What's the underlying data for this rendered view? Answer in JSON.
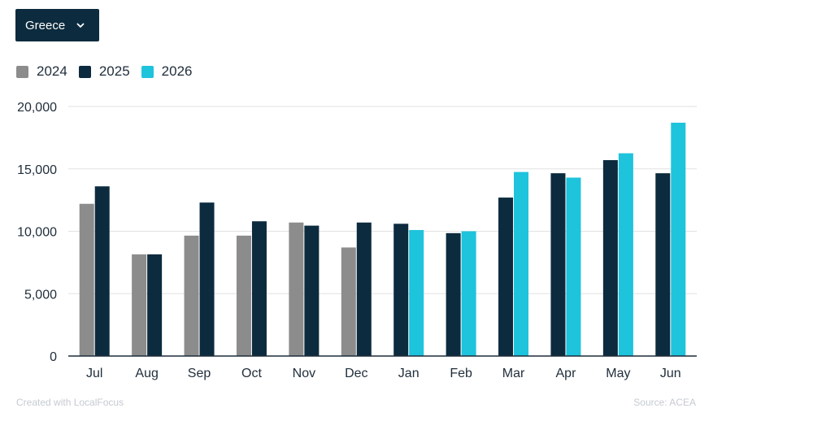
{
  "filter": {
    "selected": "Greece",
    "icon": "chevron-down-icon"
  },
  "colors": {
    "2024": "#8c8c8c",
    "2025": "#0d2b3e",
    "2026": "#1ec3dc",
    "grid": "#e2e2e2",
    "axis": "#1f2d3a"
  },
  "chart_data": {
    "type": "bar",
    "categories": [
      "Jul",
      "Aug",
      "Sep",
      "Oct",
      "Nov",
      "Dec",
      "Jan",
      "Feb",
      "Mar",
      "Apr",
      "May",
      "Jun"
    ],
    "series": [
      {
        "name": "2024",
        "values": [
          12200,
          8150,
          9650,
          9650,
          10700,
          8700,
          null,
          null,
          null,
          null,
          null,
          null
        ]
      },
      {
        "name": "2025",
        "values": [
          13600,
          8150,
          12300,
          10800,
          10450,
          10700,
          10600,
          9850,
          12700,
          14650,
          15700,
          14650
        ]
      },
      {
        "name": "2026",
        "values": [
          null,
          null,
          null,
          null,
          null,
          null,
          10100,
          10000,
          14750,
          14300,
          16250,
          18700
        ]
      }
    ],
    "yticks": [
      "0",
      "5,000",
      "10,000",
      "15,000",
      "20,000"
    ],
    "ylim": [
      0,
      20000
    ],
    "grid": true,
    "legend": "top-left"
  },
  "footer": {
    "credit": "Created with LocalFocus",
    "source": "Source:  ACEA"
  }
}
